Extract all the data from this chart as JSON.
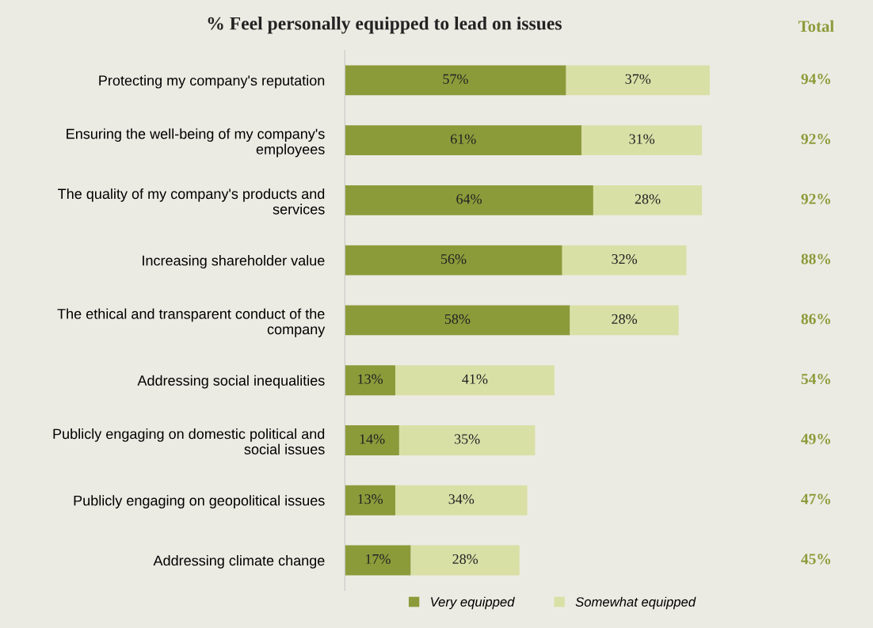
{
  "chart_data": [
    {
      "type": "bar",
      "orientation": "horizontal",
      "stacked": true,
      "title": "% Feel personally equipped to lead on issues",
      "categories": [
        "Protecting my company's reputation",
        "Ensuring the well-being of my company's\nemployees",
        "The quality of my company's products and\nservices",
        "Increasing shareholder value",
        "The ethical and transparent conduct of the\ncompany",
        "Addressing social inequalities",
        "Publicly engaging on domestic political and\nsocial issues",
        "Publicly engaging on geopolitical issues",
        "Addressing climate change"
      ],
      "series": [
        {
          "name": "Very equipped",
          "color": "#8c9b3a",
          "values": [
            57,
            61,
            64,
            56,
            58,
            13,
            14,
            13,
            17
          ],
          "value_labels": [
            "57%",
            "61%",
            "64%",
            "56%",
            "58%",
            "13%",
            "14%",
            "13%",
            "17%"
          ]
        },
        {
          "name": "Somewhat equipped",
          "color": "#d9e0a6",
          "values": [
            37,
            31,
            28,
            32,
            28,
            41,
            35,
            34,
            28
          ],
          "value_labels": [
            "37%",
            "31%",
            "28%",
            "32%",
            "28%",
            "41%",
            "35%",
            "34%",
            "28%"
          ]
        }
      ],
      "legend": "bottom",
      "grid": false,
      "tick_labels": "y"
    },
    {
      "type": "other",
      "title": "Total",
      "annotations": [
        "94%",
        "92%",
        "92%",
        "88%",
        "86%",
        "54%",
        "49%",
        "47%",
        "45%"
      ]
    }
  ]
}
